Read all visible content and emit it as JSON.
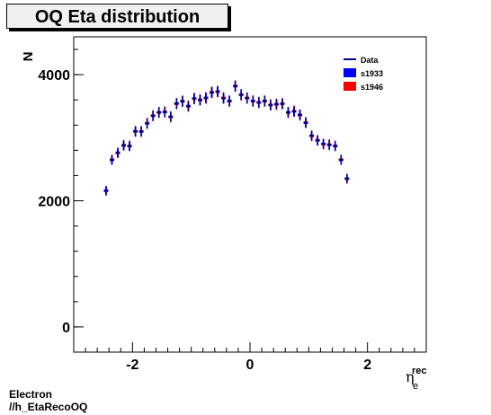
{
  "title": "OQ Eta distribution",
  "footer": {
    "line1": "Electron",
    "line2": "//h_EtaRecoOQ"
  },
  "colors": {
    "data": "#000080",
    "s1933": "#0000ff",
    "s1946": "#ff0000"
  },
  "chart_data": {
    "type": "scatter",
    "title": "OQ Eta distribution",
    "xlabel": "η_e^rec",
    "xlabel_main": "η",
    "xlabel_sub": "e",
    "xlabel_sup": "rec",
    "ylabel": "N",
    "xlim": [
      -3.0,
      3.0
    ],
    "ylim": [
      -400,
      4600
    ],
    "x_ticks": [
      -2,
      0,
      2
    ],
    "x_tick_labels": [
      "-2",
      "0",
      "2"
    ],
    "y_ticks": [
      0,
      2000,
      4000
    ],
    "y_tick_labels": [
      "0",
      "2000",
      "4000"
    ],
    "legend": {
      "placement": "top-right",
      "entries": [
        {
          "name": "Data",
          "style": "line",
          "color": "#000080"
        },
        {
          "name": "s1933",
          "style": "box",
          "color": "#0000ff"
        },
        {
          "name": "s1946",
          "style": "box",
          "color": "#ff0000"
        }
      ]
    },
    "bin_width": 0.1,
    "x": [
      -2.45,
      -2.35,
      -2.25,
      -2.15,
      -2.05,
      -1.95,
      -1.85,
      -1.75,
      -1.65,
      -1.55,
      -1.45,
      -1.35,
      -1.25,
      -1.15,
      -1.05,
      -0.95,
      -0.85,
      -0.75,
      -0.65,
      -0.55,
      -0.45,
      -0.35,
      -0.25,
      -0.15,
      -0.05,
      0.05,
      0.15,
      0.25,
      0.35,
      0.45,
      0.55,
      0.65,
      0.75,
      0.85,
      0.95,
      1.05,
      1.15,
      1.25,
      1.35,
      1.45,
      1.55,
      1.65,
      1.75,
      1.85,
      1.95,
      2.05,
      2.15,
      2.25,
      2.35,
      2.45
    ],
    "series": [
      {
        "name": "Data",
        "color": "#000080",
        "values": [
          2150,
          2650,
          2760,
          2880,
          2870,
          3100,
          3100,
          3230,
          3350,
          3400,
          3410,
          3330,
          3540,
          3580,
          3500,
          3620,
          3600,
          3630,
          3720,
          3730,
          3630,
          3580,
          3820,
          3680,
          3630,
          3580,
          3560,
          3580,
          3520,
          3530,
          3540,
          3400,
          3420,
          3360,
          3240,
          3030,
          2960,
          2900,
          2890,
          2870,
          2650,
          2350,
          null,
          null,
          null,
          null,
          null,
          null,
          null,
          null
        ]
      },
      {
        "name": "s1933",
        "color": "#0000ff",
        "values": [
          2170,
          2640,
          2770,
          2870,
          2860,
          3110,
          3090,
          3220,
          3340,
          3410,
          3400,
          3340,
          3550,
          3570,
          3510,
          3630,
          3590,
          3640,
          3710,
          3740,
          3620,
          3590,
          3810,
          3690,
          3620,
          3590,
          3550,
          3590,
          3510,
          3540,
          3530,
          3410,
          3410,
          3370,
          3230,
          3040,
          2950,
          2910,
          2880,
          2860,
          2640,
          2360,
          null,
          null,
          null,
          null,
          null,
          null,
          null,
          null
        ]
      },
      {
        "name": "s1946",
        "color": "#ff0000",
        "values": [
          2160,
          2660,
          2750,
          2890,
          2880,
          3090,
          3110,
          3240,
          3360,
          3390,
          3420,
          3320,
          3530,
          3590,
          3490,
          3610,
          3610,
          3620,
          3730,
          3720,
          3640,
          3570,
          3830,
          3670,
          3640,
          3570,
          3570,
          3570,
          3530,
          3520,
          3550,
          3390,
          3430,
          3350,
          3250,
          3020,
          2970,
          2890,
          2900,
          2880,
          2660,
          2340,
          null,
          null,
          null,
          null,
          null,
          null,
          null,
          null
        ]
      }
    ]
  }
}
